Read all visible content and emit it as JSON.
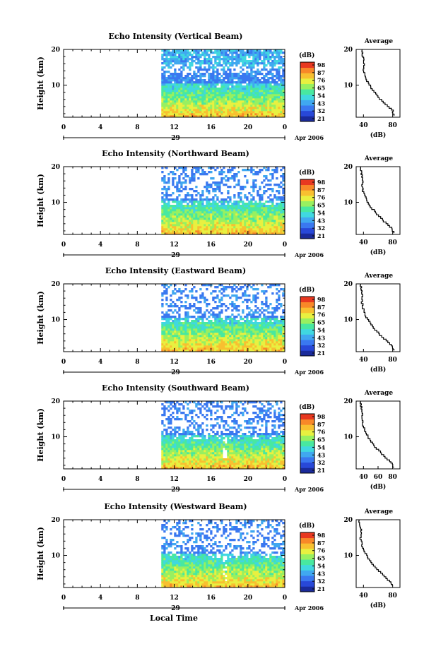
{
  "x_label": "Local Time",
  "date_label": "Apr 2006",
  "day_label": "29",
  "height_label": "Height (km)",
  "avg_title": "Average",
  "avg_xlabel": "(dB)",
  "colorbar": {
    "title": "(dB)",
    "colors": [
      "#1a2a9a",
      "#2848d8",
      "#3a78f0",
      "#40a8f0",
      "#40d8e0",
      "#48e8a0",
      "#98f060",
      "#e8f040",
      "#f8c030",
      "#f88828",
      "#e83820"
    ]
  },
  "chart_data": [
    {
      "type": "heatmap",
      "title": "Echo Intensity (Vertical Beam)",
      "x_ticks": [
        "0",
        "4",
        "8",
        "12",
        "16",
        "20",
        "0"
      ],
      "y_ticks": [
        "20",
        "10"
      ],
      "xlim": [
        0,
        24
      ],
      "ylim": [
        1,
        20
      ],
      "data_start_hour": 10.6,
      "colorbar_ticks": [
        "98",
        "87",
        "76",
        "65",
        "54",
        "43",
        "32",
        "21"
      ],
      "avg_x_ticks": [
        "40",
        "80"
      ],
      "avg_xlim": [
        30,
        90
      ],
      "avg_profile": {
        "height_km": [
          1.5,
          3,
          5,
          7,
          9,
          11,
          13,
          15,
          17,
          18.5,
          20
        ],
        "db": [
          82,
          80,
          70,
          60,
          52,
          46,
          42,
          40,
          41,
          39,
          38
        ]
      }
    },
    {
      "type": "heatmap",
      "title": "Echo Intensity (Northward Beam)",
      "x_ticks": [
        "0",
        "4",
        "8",
        "12",
        "16",
        "20",
        "0"
      ],
      "y_ticks": [
        "20",
        "10"
      ],
      "xlim": [
        0,
        24
      ],
      "ylim": [
        1,
        20
      ],
      "data_start_hour": 10.6,
      "colorbar_ticks": [
        "98",
        "87",
        "76",
        "65",
        "54",
        "43",
        "32",
        "21"
      ],
      "avg_x_ticks": [
        "40",
        "80"
      ],
      "avg_xlim": [
        30,
        90
      ],
      "avg_profile": {
        "height_km": [
          1.5,
          3,
          5,
          7,
          9,
          11,
          13,
          15,
          17,
          18.5,
          20
        ],
        "db": [
          82,
          78,
          68,
          58,
          50,
          44,
          40,
          38,
          39,
          37,
          36
        ]
      }
    },
    {
      "type": "heatmap",
      "title": "Echo Intensity (Eastward Beam)",
      "x_ticks": [
        "0",
        "4",
        "8",
        "12",
        "16",
        "20",
        "0"
      ],
      "y_ticks": [
        "20",
        "10"
      ],
      "xlim": [
        0,
        24
      ],
      "ylim": [
        1,
        20
      ],
      "data_start_hour": 10.6,
      "colorbar_ticks": [
        "98",
        "87",
        "76",
        "65",
        "54",
        "43",
        "32",
        "21"
      ],
      "avg_x_ticks": [
        "40",
        "80"
      ],
      "avg_xlim": [
        30,
        90
      ],
      "avg_profile": {
        "height_km": [
          1.5,
          3,
          5,
          7,
          9,
          11,
          13,
          15,
          17,
          18.5,
          20
        ],
        "db": [
          82,
          78,
          68,
          58,
          50,
          44,
          40,
          38,
          39,
          37,
          36
        ]
      }
    },
    {
      "type": "heatmap",
      "title": "Echo Intensity (Southward Beam)",
      "x_ticks": [
        "0",
        "4",
        "8",
        "12",
        "16",
        "20",
        "0"
      ],
      "y_ticks": [
        "20",
        "10"
      ],
      "xlim": [
        0,
        24
      ],
      "ylim": [
        1,
        20
      ],
      "data_start_hour": 10.6,
      "colorbar_ticks": [
        "98",
        "87",
        "76",
        "65",
        "54",
        "43",
        "32",
        "21"
      ],
      "avg_x_ticks": [
        "40",
        "60",
        "80"
      ],
      "avg_xlim": [
        30,
        90
      ],
      "avg_profile": {
        "height_km": [
          1.5,
          3,
          5,
          7,
          9,
          11,
          13,
          15,
          17,
          18.5,
          20
        ],
        "db": [
          82,
          78,
          68,
          58,
          50,
          44,
          40,
          38,
          39,
          37,
          36
        ]
      }
    },
    {
      "type": "heatmap",
      "title": "Echo Intensity (Westward Beam)",
      "x_ticks": [
        "0",
        "4",
        "8",
        "12",
        "16",
        "20",
        "0"
      ],
      "y_ticks": [
        "20",
        "10"
      ],
      "xlim": [
        0,
        24
      ],
      "ylim": [
        1,
        20
      ],
      "data_start_hour": 10.6,
      "colorbar_ticks": [
        "98",
        "87",
        "76",
        "65",
        "54",
        "43",
        "32",
        "21"
      ],
      "avg_x_ticks": [
        "40",
        "80"
      ],
      "avg_xlim": [
        30,
        90
      ],
      "avg_profile": {
        "height_km": [
          1.5,
          3,
          5,
          7,
          9,
          11,
          13,
          15,
          17,
          18.5,
          20
        ],
        "db": [
          80,
          76,
          66,
          56,
          48,
          42,
          38,
          36,
          37,
          35,
          34
        ]
      }
    }
  ]
}
